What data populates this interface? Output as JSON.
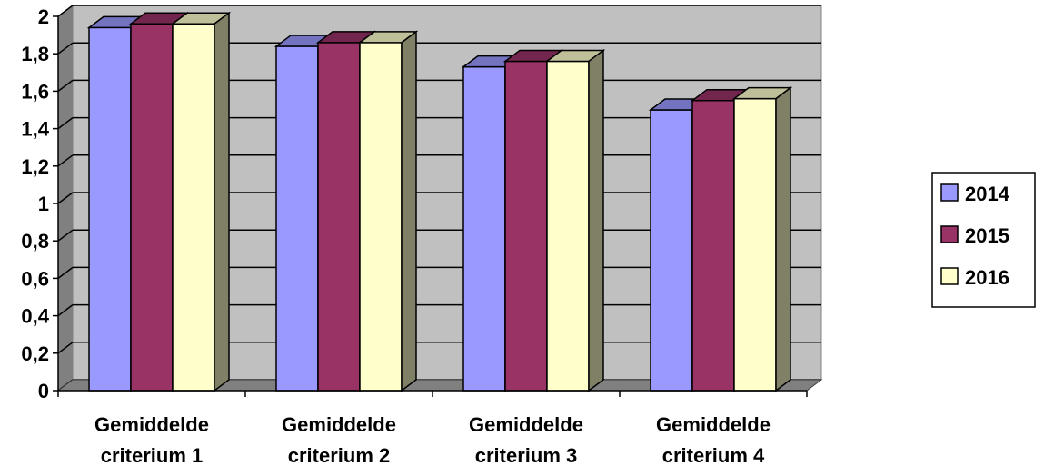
{
  "chart_data": {
    "type": "bar",
    "style": "3d-clustered-column",
    "categories": [
      "Gemiddelde criterium 1",
      "Gemiddelde criterium 2",
      "Gemiddelde criterium 3",
      "Gemiddelde criterium 4"
    ],
    "series": [
      {
        "name": "2014",
        "color": "#9999FF",
        "top_color": "#7373C0",
        "side_color": "#7373C0",
        "values": [
          1.94,
          1.84,
          1.73,
          1.5
        ]
      },
      {
        "name": "2015",
        "color": "#993366",
        "top_color": "#73264D",
        "side_color": "#73264D",
        "values": [
          1.96,
          1.86,
          1.76,
          1.55
        ]
      },
      {
        "name": "2016",
        "color": "#FFFFCC",
        "top_color": "#BFBF99",
        "side_color": "#808066",
        "values": [
          1.96,
          1.86,
          1.76,
          1.56
        ]
      }
    ],
    "ylim": [
      0,
      2
    ],
    "yticks": [
      "0",
      "0,2",
      "0,4",
      "0,6",
      "0,8",
      "1",
      "1,2",
      "1,4",
      "1,6",
      "1,8",
      "2"
    ],
    "grid": true,
    "wall_color": "#C0C0C0",
    "floor_color": "#808080",
    "legend_position": "right",
    "title": "",
    "xlabel": "",
    "ylabel": ""
  }
}
